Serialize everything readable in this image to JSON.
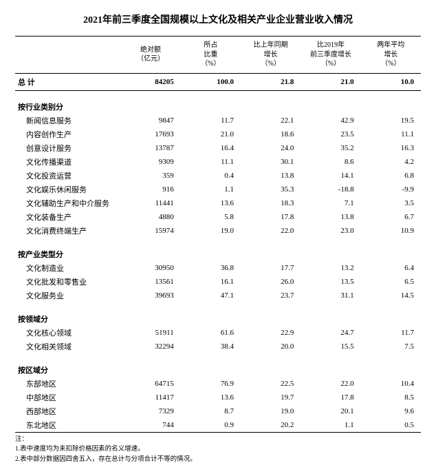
{
  "title": "2021年前三季度全国规模以上文化及相关产业企业营业收入情况",
  "headers": {
    "c1a": "绝对额",
    "c1b": "（亿元）",
    "c2a": "所占",
    "c2b": "比重",
    "c2c": "（%）",
    "c3a": "比上年同期",
    "c3b": "增长",
    "c3c": "（%）",
    "c4a": "比2019年",
    "c4b": "前三季度增长",
    "c4c": "（%）",
    "c5a": "两年平均",
    "c5b": "增长",
    "c5c": "（%）"
  },
  "total": {
    "label": "总  计",
    "v": [
      "84205",
      "100.0",
      "21.8",
      "21.0",
      "10.0"
    ]
  },
  "sections": [
    {
      "label": "按行业类别分",
      "rows": [
        {
          "label": "新闻信息服务",
          "v": [
            "9847",
            "11.7",
            "22.1",
            "42.9",
            "19.5"
          ]
        },
        {
          "label": "内容创作生产",
          "v": [
            "17693",
            "21.0",
            "18.6",
            "23.5",
            "11.1"
          ]
        },
        {
          "label": "创意设计服务",
          "v": [
            "13787",
            "16.4",
            "24.0",
            "35.2",
            "16.3"
          ]
        },
        {
          "label": "文化传播渠道",
          "v": [
            "9309",
            "11.1",
            "30.1",
            "8.6",
            "4.2"
          ]
        },
        {
          "label": "文化投资运营",
          "v": [
            "359",
            "0.4",
            "13.8",
            "14.1",
            "6.8"
          ]
        },
        {
          "label": "文化娱乐休闲服务",
          "v": [
            "916",
            "1.1",
            "35.3",
            "-18.8",
            "-9.9"
          ]
        },
        {
          "label": "文化辅助生产和中介服务",
          "v": [
            "11441",
            "13.6",
            "18.3",
            "7.1",
            "3.5"
          ]
        },
        {
          "label": "文化装备生产",
          "v": [
            "4880",
            "5.8",
            "17.8",
            "13.8",
            "6.7"
          ]
        },
        {
          "label": "文化消费终端生产",
          "v": [
            "15974",
            "19.0",
            "22.0",
            "23.0",
            "10.9"
          ]
        }
      ]
    },
    {
      "label": "按产业类型分",
      "rows": [
        {
          "label": "文化制造业",
          "v": [
            "30950",
            "36.8",
            "17.7",
            "13.2",
            "6.4"
          ]
        },
        {
          "label": "文化批发和零售业",
          "v": [
            "13561",
            "16.1",
            "26.0",
            "13.5",
            "6.5"
          ]
        },
        {
          "label": "文化服务业",
          "v": [
            "39693",
            "47.1",
            "23.7",
            "31.1",
            "14.5"
          ]
        }
      ]
    },
    {
      "label": "按领域分",
      "rows": [
        {
          "label": "文化核心领域",
          "v": [
            "51911",
            "61.6",
            "22.9",
            "24.7",
            "11.7"
          ]
        },
        {
          "label": "文化相关领域",
          "v": [
            "32294",
            "38.4",
            "20.0",
            "15.5",
            "7.5"
          ]
        }
      ]
    },
    {
      "label": "按区域分",
      "rows": [
        {
          "label": "东部地区",
          "v": [
            "64715",
            "76.9",
            "22.5",
            "22.0",
            "10.4"
          ]
        },
        {
          "label": "中部地区",
          "v": [
            "11417",
            "13.6",
            "19.7",
            "17.8",
            "8.5"
          ]
        },
        {
          "label": "西部地区",
          "v": [
            "7329",
            "8.7",
            "19.0",
            "20.1",
            "9.6"
          ]
        },
        {
          "label": "东北地区",
          "v": [
            "744",
            "0.9",
            "20.2",
            "1.1",
            "0.5"
          ]
        }
      ]
    }
  ],
  "footnotes": {
    "heading": "注：",
    "n1": "1.表中速度均为未扣除价格因素的名义增速。",
    "n2": "2.表中部分数据因四舍五入，存在总计与分项合计不等的情况。"
  }
}
